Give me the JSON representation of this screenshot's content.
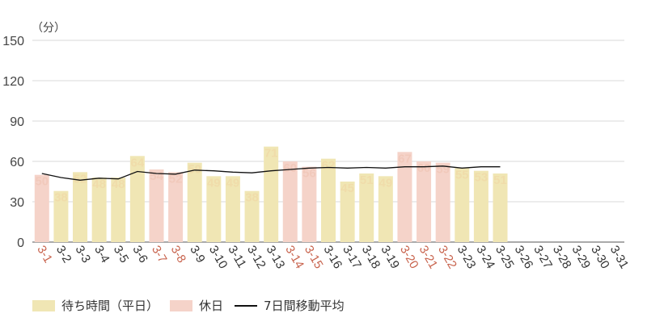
{
  "chart_data": {
    "type": "bar",
    "unit_label": "（分）",
    "y_ticks": [
      0,
      30,
      60,
      90,
      120,
      150
    ],
    "ylim": [
      0,
      150
    ],
    "categories": [
      "3-1",
      "3-2",
      "3-3",
      "3-4",
      "3-5",
      "3-6",
      "3-7",
      "3-8",
      "3-9",
      "3-10",
      "3-11",
      "3-12",
      "3-13",
      "3-14",
      "3-15",
      "3-16",
      "3-17",
      "3-18",
      "3-19",
      "3-20",
      "3-21",
      "3-22",
      "3-23",
      "3-24",
      "3-25",
      "3-26",
      "3-27",
      "3-28",
      "3-29",
      "3-30",
      "3-31"
    ],
    "holiday_flags": [
      true,
      false,
      false,
      false,
      false,
      false,
      true,
      true,
      false,
      false,
      false,
      false,
      false,
      true,
      true,
      false,
      false,
      false,
      false,
      true,
      true,
      true,
      false,
      false,
      false,
      false,
      false,
      false,
      false,
      false,
      false
    ],
    "values": [
      50,
      38,
      52,
      48,
      48,
      64,
      54,
      52,
      59,
      49,
      49,
      38,
      71,
      60,
      56,
      62,
      45,
      51,
      49,
      67,
      60,
      59,
      55,
      53,
      51,
      null,
      null,
      null,
      null,
      null,
      null
    ],
    "moving_average": [
      51,
      48,
      46,
      47.5,
      47,
      52.5,
      51,
      50.5,
      53.5,
      53,
      52,
      51.5,
      53,
      54,
      55,
      55.5,
      55,
      55.5,
      55,
      56,
      56,
      56.5,
      55,
      56,
      56,
      null,
      null,
      null,
      null,
      null,
      null
    ],
    "series": [
      {
        "name": "待ち時間（平日）",
        "color": "#f0e6b4"
      },
      {
        "name": "休日",
        "color": "#f5d3c9"
      },
      {
        "name": "7日間移動平均",
        "color": "#111111"
      }
    ],
    "label_colors": {
      "weekday": "#f0dcaa",
      "holiday": "#f1c9bb",
      "weekday_tick": "#333333",
      "holiday_tick": "#c8634d"
    },
    "grid": true
  }
}
